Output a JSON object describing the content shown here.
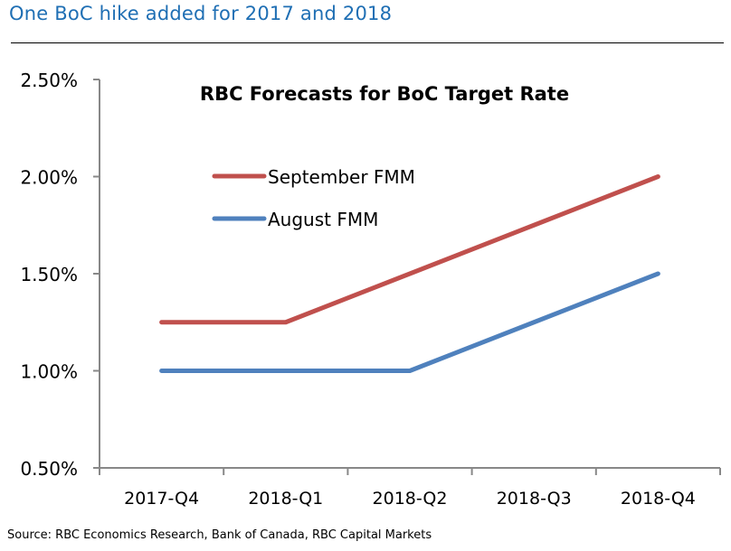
{
  "header": {
    "title": "One BoC hike added for 2017 and 2018"
  },
  "source": "Source: RBC Economics Research, Bank of Canada, RBC Capital Markets",
  "colors": {
    "title": "#1f6fb4",
    "september": "#c0504d",
    "august": "#4f81bd",
    "axis": "#888888"
  },
  "chart_data": {
    "type": "line",
    "title": "RBC Forecasts for BoC Target Rate",
    "xlabel": "",
    "ylabel": "",
    "categories": [
      "2017-Q4",
      "2018-Q1",
      "2018-Q2",
      "2018-Q3",
      "2018-Q4"
    ],
    "yticks": [
      "0.50%",
      "1.00%",
      "1.50%",
      "2.00%",
      "2.50%"
    ],
    "ytick_values": [
      0.5,
      1.0,
      1.5,
      2.0,
      2.5
    ],
    "ylim": [
      0.5,
      2.5
    ],
    "grid": false,
    "legend_position": "top-left",
    "series": [
      {
        "name": "September FMM",
        "color": "#c0504d",
        "values": [
          1.25,
          1.25,
          1.5,
          1.75,
          2.0
        ]
      },
      {
        "name": "August FMM",
        "color": "#4f81bd",
        "values": [
          1.0,
          1.0,
          1.0,
          1.25,
          1.5
        ]
      }
    ]
  }
}
